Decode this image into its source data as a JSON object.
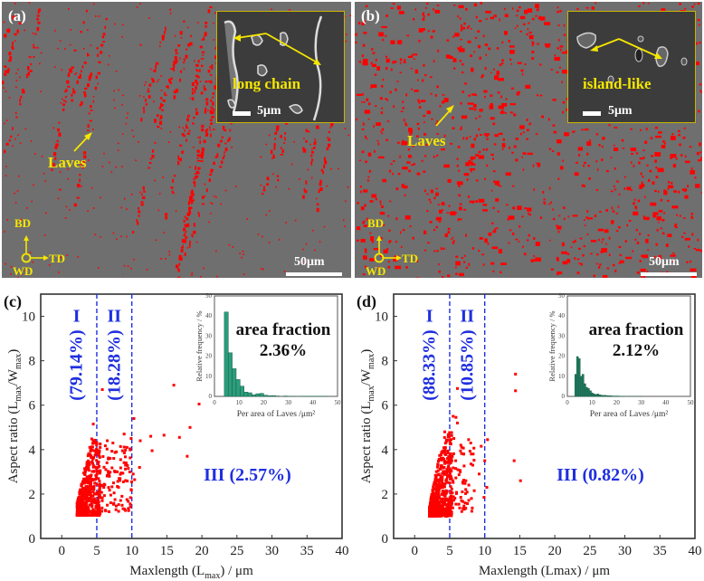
{
  "panels": {
    "a": {
      "label": "(a)",
      "annotation": "Laves",
      "inset_label": "long chain",
      "inset_scale": "5μm",
      "scale": "50μm",
      "axes": {
        "up": "BD",
        "right": "TD",
        "origin": "WD"
      },
      "morphology": "chain"
    },
    "b": {
      "label": "(b)",
      "annotation": "Laves",
      "inset_label": "island-like",
      "inset_scale": "5μm",
      "scale": "50μm",
      "axes": {
        "up": "BD",
        "right": "TD",
        "origin": "WD"
      },
      "morphology": "island"
    }
  },
  "colors": {
    "points": "#ff0000",
    "regions": "#1f2fe0",
    "bars": "#2a9d7c",
    "bars_d": "#1e7a5e",
    "annot": "#f5e600"
  },
  "chart_data": [
    {
      "panel": "(c)",
      "type": "scatter",
      "xlabel": "Maxlength (L",
      "xlabel_sub": "max",
      "xlabel_tail": ") / μm",
      "ylabel": "Aspect ratio (L",
      "ylabel_sub1": "max",
      "ylabel_mid": "/W",
      "ylabel_sub2": "max",
      "ylabel_tail": ")",
      "xlim": [
        -3,
        40
      ],
      "ylim": [
        0,
        11
      ],
      "xticks": [
        0,
        5,
        10,
        15,
        20,
        25,
        30,
        35,
        40
      ],
      "yticks": [
        0,
        2,
        4,
        6,
        8,
        10
      ],
      "dividers": [
        5,
        10
      ],
      "regions": [
        {
          "name": "I",
          "pct": "(79.14%)"
        },
        {
          "name": "II",
          "pct": "(18.28%)"
        },
        {
          "name": "III (2.57%)"
        }
      ],
      "outliers": [
        [
          5.8,
          6.7
        ],
        [
          16,
          6.9
        ],
        [
          19.6,
          6.05
        ],
        [
          10.3,
          5.4
        ],
        [
          18.3,
          5.0
        ],
        [
          4.5,
          5.15
        ],
        [
          8.9,
          4.7
        ],
        [
          12.7,
          4.6
        ],
        [
          14.6,
          4.65
        ],
        [
          16.8,
          4.55
        ],
        [
          11.2,
          4.4
        ],
        [
          9.9,
          4.5
        ],
        [
          12.9,
          3.95
        ],
        [
          17.9,
          3.7
        ],
        [
          11.1,
          3.2
        ],
        [
          10.4,
          2.65
        ],
        [
          9.9,
          2.2
        ],
        [
          10.2,
          2.9
        ],
        [
          8.1,
          2.3
        ],
        [
          8.6,
          1.9
        ],
        [
          9.3,
          1.75
        ],
        [
          7.6,
          1.75
        ],
        [
          6.5,
          1.5
        ],
        [
          7.0,
          1.95
        ],
        [
          9.7,
          3.0
        ],
        [
          9.3,
          4.1
        ],
        [
          8.4,
          3.55
        ],
        [
          7.3,
          4.3
        ],
        [
          6.5,
          4.4
        ],
        [
          5.5,
          4.25
        ],
        [
          7.8,
          3.9
        ],
        [
          6.9,
          3.6
        ],
        [
          7.6,
          3.0
        ],
        [
          8.2,
          2.7
        ],
        [
          6.3,
          3.1
        ],
        [
          7.4,
          2.5
        ],
        [
          9.1,
          3.3
        ],
        [
          8.8,
          2.55
        ],
        [
          6.0,
          2.3
        ],
        [
          6.8,
          2.8
        ]
      ],
      "cluster": {
        "x_range": [
          2.2,
          5.5
        ],
        "y_range": [
          1.05,
          4.5
        ],
        "count": 520,
        "spread_x": [
          5,
          10
        ],
        "spread_count": 90
      },
      "inset": {
        "type": "bar",
        "title": "area fraction",
        "value": "2.36%",
        "xlabel": "Per area of Laves /μm²",
        "ylabel": "Relative frequency / %",
        "xlim": [
          0,
          50
        ],
        "ylim": [
          0,
          50
        ],
        "xticks": [
          0,
          10,
          20,
          30,
          40,
          50
        ],
        "yticks": [
          0,
          10,
          20,
          30,
          40,
          50
        ],
        "bin_width": 1.6,
        "bin_start": 4,
        "values": [
          42,
          21.7,
          13.8,
          8.4,
          5.1,
          2.1,
          1.8,
          0.8,
          1.3,
          1.5,
          0.6,
          0.3,
          0.4,
          0.2,
          0,
          0.2,
          0.1,
          0.1,
          0,
          0.1,
          0.1,
          0.1,
          0.1,
          0.1,
          0.1,
          0.1
        ]
      }
    },
    {
      "panel": "(d)",
      "type": "scatter",
      "xlabel": "Maxlength (Lmax) / μm",
      "ylabel": "Aspect ratio (L",
      "ylabel_sub1": "max",
      "ylabel_mid": "/W",
      "ylabel_sub2": "max",
      "ylabel_tail": ")",
      "xlim": [
        -3,
        40
      ],
      "ylim": [
        0,
        11
      ],
      "xticks": [
        0,
        5,
        10,
        15,
        20,
        25,
        30,
        35,
        40
      ],
      "yticks": [
        0,
        2,
        4,
        6,
        8,
        10
      ],
      "dividers": [
        5,
        10
      ],
      "regions": [
        {
          "name": "I",
          "pct": "(88.33%)"
        },
        {
          "name": "II",
          "pct": "(10.85%)"
        },
        {
          "name": "III (0.82%)"
        }
      ],
      "outliers": [
        [
          14.4,
          7.4
        ],
        [
          14.4,
          6.65
        ],
        [
          6.1,
          6.75
        ],
        [
          14.2,
          3.5
        ],
        [
          15.1,
          2.6
        ],
        [
          10.4,
          4.45
        ],
        [
          9.5,
          4.15
        ],
        [
          10.3,
          2.3
        ],
        [
          9.9,
          1.85
        ],
        [
          10.0,
          3.5
        ],
        [
          9.2,
          2.9
        ],
        [
          8.5,
          2.15
        ],
        [
          7.7,
          4.45
        ],
        [
          8.0,
          4.3
        ],
        [
          8.3,
          3.3
        ],
        [
          7.0,
          3.8
        ],
        [
          6.6,
          4.2
        ],
        [
          5.5,
          5.5
        ],
        [
          5.9,
          5.45
        ],
        [
          6.1,
          5.2
        ],
        [
          5.6,
          4.5
        ],
        [
          7.2,
          1.6
        ],
        [
          6.9,
          1.35
        ],
        [
          7.3,
          2.6
        ],
        [
          8.1,
          1.8
        ],
        [
          6.5,
          3.0
        ],
        [
          6.8,
          2.1
        ]
      ],
      "cluster": {
        "x_range": [
          2.1,
          5.3
        ],
        "y_range": [
          1.0,
          4.8
        ],
        "count": 560,
        "spread_x": [
          5,
          8.5
        ],
        "spread_count": 60
      },
      "inset": {
        "type": "bar",
        "title": "area fraction",
        "value": "2.12%",
        "xlabel": "Per area of Laves /μm²",
        "ylabel": "Relative frequency / %",
        "xlim": [
          0,
          50
        ],
        "ylim": [
          0,
          50
        ],
        "xticks": [
          0,
          10,
          20,
          30,
          40,
          50
        ],
        "yticks": [
          0,
          10,
          20,
          30,
          40,
          50
        ],
        "bin_width": 0.75,
        "bin_start": 3,
        "values": [
          11,
          19.8,
          18.8,
          10,
          11,
          6.3,
          4.5,
          4,
          2.8,
          1.7,
          1.2,
          0.9,
          1.2,
          0.8,
          0.6,
          0.5,
          0.5,
          0.4,
          0.3,
          0.3,
          0.2,
          0.2,
          0.2,
          0.2,
          0.1,
          0.1,
          0.1,
          0.1,
          0,
          0.1,
          0,
          0.1,
          0,
          0.1,
          0,
          0.1
        ]
      }
    }
  ]
}
